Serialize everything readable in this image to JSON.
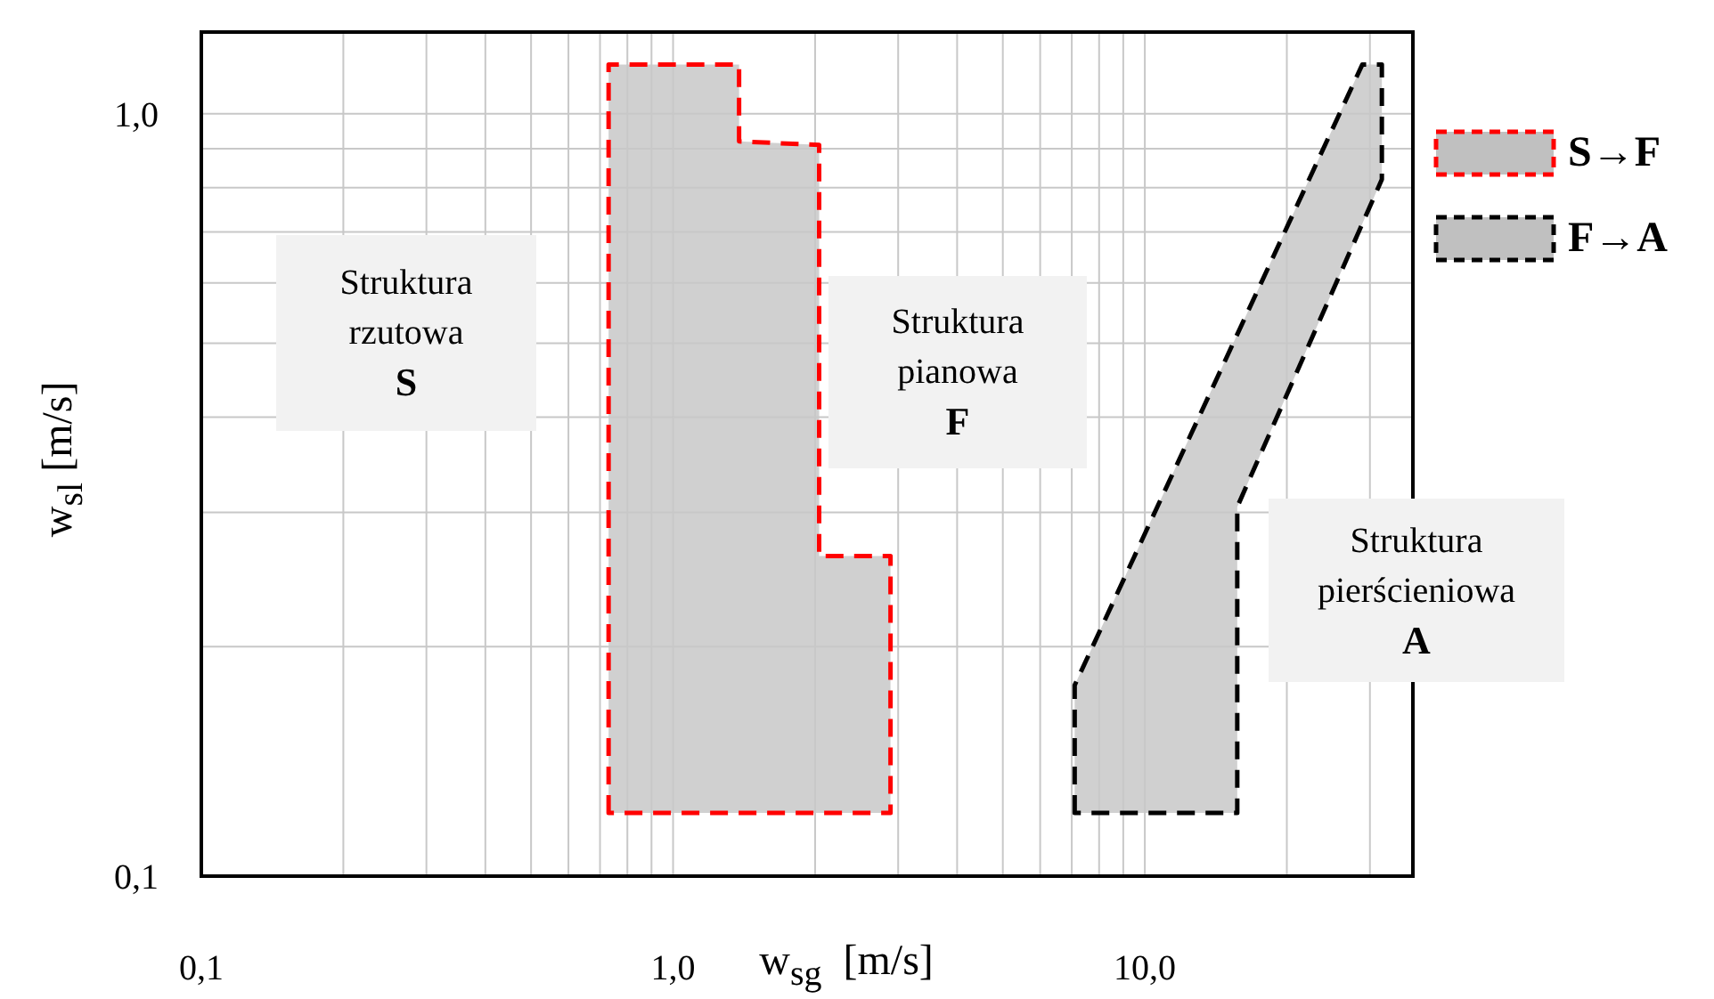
{
  "chart_data": {
    "type": "area",
    "xlabel": "w$_{sg}$  [m/s]",
    "ylabel": "w$_{sl}$ [m/s]",
    "log": "xy",
    "grid": true,
    "legend": "right",
    "line_style": "dashed",
    "xlim": [
      0.1,
      37
    ],
    "ylim": [
      0.1,
      1.28
    ],
    "xticks": [
      {
        "value": 0.1,
        "label": "0,1"
      },
      {
        "value": 0.2,
        "label": null
      },
      {
        "value": 0.3,
        "label": null
      },
      {
        "value": 0.4,
        "label": null
      },
      {
        "value": 0.5,
        "label": null
      },
      {
        "value": 0.6,
        "label": null
      },
      {
        "value": 0.7,
        "label": null
      },
      {
        "value": 0.8,
        "label": null
      },
      {
        "value": 0.9,
        "label": null
      },
      {
        "value": 1,
        "label": "1,0"
      },
      {
        "value": 2,
        "label": null
      },
      {
        "value": 3,
        "label": null
      },
      {
        "value": 4,
        "label": null
      },
      {
        "value": 5,
        "label": null
      },
      {
        "value": 6,
        "label": null
      },
      {
        "value": 7,
        "label": null
      },
      {
        "value": 8,
        "label": null
      },
      {
        "value": 9,
        "label": null
      },
      {
        "value": 10,
        "label": "10,0"
      },
      {
        "value": 20,
        "label": null
      },
      {
        "value": 30,
        "label": null
      }
    ],
    "yticks": [
      {
        "value": 0.1,
        "label": "0,1"
      },
      {
        "value": 0.2,
        "label": null
      },
      {
        "value": 0.3,
        "label": null
      },
      {
        "value": 0.4,
        "label": null
      },
      {
        "value": 0.5,
        "label": null
      },
      {
        "value": 0.6,
        "label": null
      },
      {
        "value": 0.7,
        "label": null
      },
      {
        "value": 0.8,
        "label": null
      },
      {
        "value": 0.9,
        "label": null
      },
      {
        "value": 1,
        "label": "1,0"
      }
    ],
    "series": [
      {
        "name": "S→F",
        "color": "#ff0000",
        "x": [
          0.73,
          0.73,
          1.38,
          1.38,
          2.04,
          2.04,
          2.89,
          2.89
        ],
        "values": [
          0.121,
          1.16,
          1.16,
          0.92,
          0.91,
          0.263,
          0.263,
          0.121
        ]
      },
      {
        "name": "F→A",
        "color": "#000000",
        "x": [
          7.1,
          7.1,
          28.9,
          31.8,
          31.8,
          15.7,
          15.7
        ],
        "values": [
          0.121,
          0.178,
          1.16,
          1.16,
          0.82,
          0.305,
          0.121
        ]
      }
    ],
    "annotations": [
      "Struktura\nrzutowa\nS",
      "Struktura\npianowa\nF",
      "Struktura\npierścieniowa\nA"
    ]
  }
}
